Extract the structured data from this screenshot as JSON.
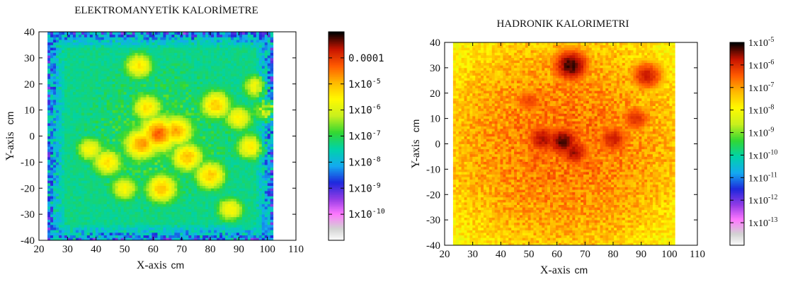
{
  "chart_data": [
    {
      "type": "heatmap",
      "title": "ELEKTROMANYETİK KALORİMETRE",
      "xlabel": "X-axis",
      "xunit": "cm",
      "ylabel": "Y-axis",
      "yunit": "cm",
      "xlim": [
        20,
        110
      ],
      "ylim": [
        -40,
        40
      ],
      "xticks": [
        "20",
        "30",
        "40",
        "50",
        "60",
        "70",
        "80",
        "90",
        "100",
        "110"
      ],
      "yticks": [
        "40",
        "30",
        "20",
        "10",
        "0",
        "-10",
        "-20",
        "-30",
        "-40"
      ],
      "data_extent": {
        "x": [
          23,
          102
        ],
        "y": [
          -40,
          40
        ]
      },
      "colorbar": {
        "scale": "log",
        "range": [
          1e-11,
          0.001
        ],
        "labels": [
          {
            "value": 0.0001,
            "text": "0.0001"
          },
          {
            "value": 1e-05,
            "text": "1x10",
            "exp": "-5"
          },
          {
            "value": 1e-06,
            "text": "1x10",
            "exp": "-6"
          },
          {
            "value": 1e-07,
            "text": "1x10",
            "exp": "-7"
          },
          {
            "value": 1e-08,
            "text": "1x10",
            "exp": "-8"
          },
          {
            "value": 1e-09,
            "text": "1x10",
            "exp": "-9"
          },
          {
            "value": 1e-10,
            "text": "1x10",
            "exp": "-10"
          }
        ]
      },
      "hotspots": [
        {
          "x": 62,
          "y": 1,
          "log": -4.3
        },
        {
          "x": 56,
          "y": -3,
          "log": -4.7
        },
        {
          "x": 68,
          "y": 2,
          "log": -4.8
        },
        {
          "x": 63,
          "y": -20,
          "log": -5.0
        },
        {
          "x": 72,
          "y": -8,
          "log": -5.0
        },
        {
          "x": 82,
          "y": 12,
          "log": -5.1
        },
        {
          "x": 80,
          "y": -15,
          "log": -5.1
        },
        {
          "x": 44,
          "y": -10,
          "log": -5.3
        },
        {
          "x": 55,
          "y": 27,
          "log": -5.4
        },
        {
          "x": 87,
          "y": -28,
          "log": -5.6
        },
        {
          "x": 94,
          "y": -4,
          "log": -5.4
        },
        {
          "x": 90,
          "y": 7,
          "log": -5.5
        },
        {
          "x": 50,
          "y": -20,
          "log": -5.6
        },
        {
          "x": 100,
          "y": 10,
          "log": -5.6
        },
        {
          "x": 96,
          "y": 19,
          "log": -5.7
        },
        {
          "x": 38,
          "y": -5,
          "log": -5.6
        },
        {
          "x": 58,
          "y": 11,
          "log": -5.3
        }
      ]
    },
    {
      "type": "heatmap",
      "title": "HADRONIK KALORIMETRI",
      "xlabel": "X-axis",
      "xunit": "cm",
      "ylabel": "Y-axis",
      "yunit": "cm",
      "xlim": [
        20,
        110
      ],
      "ylim": [
        -40,
        40
      ],
      "xticks": [
        "20",
        "30",
        "40",
        "50",
        "60",
        "70",
        "80",
        "90",
        "100",
        "110"
      ],
      "yticks": [
        "40",
        "30",
        "20",
        "10",
        "0",
        "-10",
        "-20",
        "-30",
        "-40"
      ],
      "data_extent": {
        "x": [
          23,
          102
        ],
        "y": [
          -40,
          40
        ]
      },
      "colorbar": {
        "scale": "log",
        "range": [
          1e-14,
          1e-05
        ],
        "labels": [
          {
            "value": 1e-05,
            "text": "1x10",
            "exp": "-5"
          },
          {
            "value": 1e-06,
            "text": "1x10",
            "exp": "-6"
          },
          {
            "value": 1e-07,
            "text": "1x10",
            "exp": "-7"
          },
          {
            "value": 1e-08,
            "text": "1x10",
            "exp": "-8"
          },
          {
            "value": 1e-09,
            "text": "1x10",
            "exp": "-9"
          },
          {
            "value": 1e-10,
            "text": "1x10",
            "exp": "-10"
          },
          {
            "value": 1e-11,
            "text": "1x10",
            "exp": "-11"
          },
          {
            "value": 1e-12,
            "text": "1x10",
            "exp": "-12"
          },
          {
            "value": 1e-13,
            "text": "1x10",
            "exp": "-13"
          }
        ]
      },
      "hotspots": [
        {
          "x": 62,
          "y": 1,
          "log": -5.3
        },
        {
          "x": 55,
          "y": 2,
          "log": -5.6
        },
        {
          "x": 66,
          "y": -3,
          "log": -5.6
        },
        {
          "x": 65,
          "y": 31,
          "log": -5.2
        },
        {
          "x": 92,
          "y": 27,
          "log": -5.8
        },
        {
          "x": 80,
          "y": 2,
          "log": -5.8
        },
        {
          "x": 88,
          "y": 10,
          "log": -6.0
        },
        {
          "x": 50,
          "y": 17,
          "log": -6.2
        }
      ]
    }
  ]
}
